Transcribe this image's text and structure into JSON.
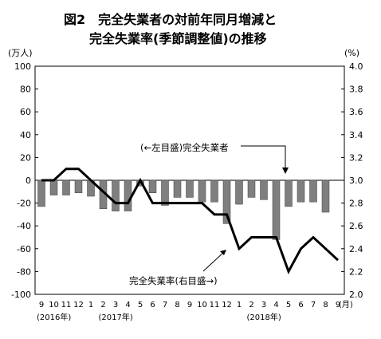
{
  "chart_data": {
    "type": "bar",
    "title": "図2　完全失業者の対前年同月増減と",
    "subtitle": "完全失業率(季節調整値)の推移",
    "left_unit": "(万人)",
    "right_unit": "(%)",
    "x_unit": "(月)",
    "categories": [
      "9",
      "10",
      "11",
      "12",
      "1",
      "2",
      "3",
      "4",
      "5",
      "6",
      "7",
      "8",
      "9",
      "10",
      "11",
      "12",
      "1",
      "2",
      "3",
      "4",
      "5",
      "6",
      "7",
      "8",
      "9"
    ],
    "year_labels": [
      {
        "text": "(2016年)",
        "category_index": 0
      },
      {
        "text": "(2017年)",
        "category_index": 5
      },
      {
        "text": "(2018年)",
        "category_index": 17
      }
    ],
    "left_axis": {
      "ylim": [
        -100,
        100
      ],
      "ticks": [
        100,
        80,
        60,
        40,
        20,
        0,
        -20,
        -40,
        -60,
        -80,
        -100
      ]
    },
    "right_axis": {
      "ylim": [
        2.0,
        4.0
      ],
      "ticks": [
        "4.0",
        "3.8",
        "3.6",
        "3.4",
        "3.2",
        "3.0",
        "2.8",
        "2.6",
        "2.4",
        "2.2",
        "2.0"
      ]
    },
    "series": [
      {
        "name": "完全失業者",
        "kind": "bar",
        "axis": "left",
        "color": "#7f7f7f",
        "values": [
          -23,
          -13,
          -13,
          -11,
          -14,
          -25,
          -27,
          -27,
          -5,
          -11,
          -22,
          -15,
          -15,
          -19,
          -19,
          -38,
          -21,
          -15,
          -17,
          -52,
          -23,
          -19,
          -19,
          -28,
          0
        ]
      },
      {
        "name": "完全失業率",
        "kind": "line",
        "axis": "right",
        "color": "#000000",
        "values": [
          3.0,
          3.0,
          3.1,
          3.1,
          3.0,
          2.9,
          2.8,
          2.8,
          3.0,
          2.8,
          2.8,
          2.8,
          2.8,
          2.8,
          2.7,
          2.7,
          2.4,
          2.5,
          2.5,
          2.5,
          2.2,
          2.4,
          2.5,
          2.4,
          2.3
        ]
      }
    ],
    "annotations": [
      {
        "text": "(←左目盛)完全失業者",
        "target_series": "完全失業者"
      },
      {
        "text": "完全失業率(右目盛→)",
        "target_series": "完全失業率"
      }
    ],
    "grid": false,
    "legend": "none"
  }
}
